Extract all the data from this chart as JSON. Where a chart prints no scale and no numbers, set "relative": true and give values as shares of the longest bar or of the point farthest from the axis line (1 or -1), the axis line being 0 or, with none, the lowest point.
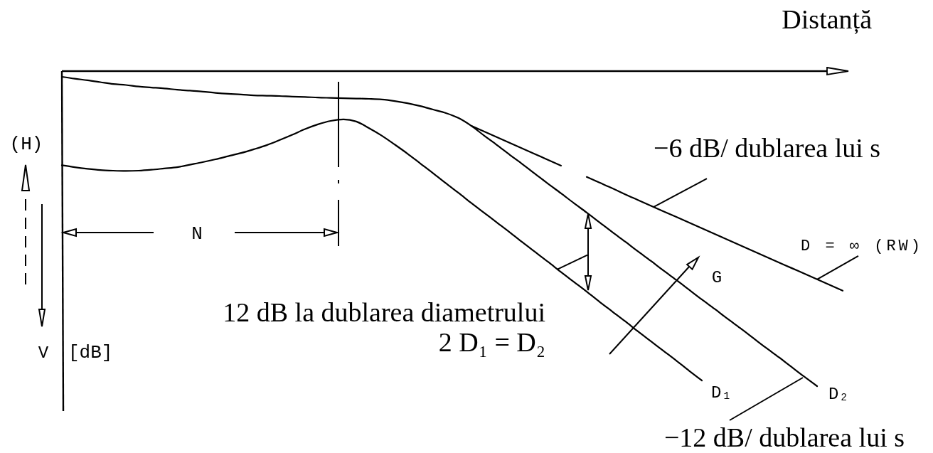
{
  "chart_data": {
    "type": "line",
    "xlabel": "Distanță",
    "relative": true,
    "line_style": "solid",
    "annotations": [
      "(H)",
      "V",
      "[dB]",
      "N",
      "12 dB la dublarea diametrului",
      "2 D₁ = D₂",
      "−6 dB/ dublarea lui s",
      "G",
      "−12 dB/ dublarea lui s"
    ],
    "categories": [
      null,
      null,
      null,
      null,
      null,
      null,
      null,
      null,
      null,
      null,
      null,
      null,
      null,
      null,
      null,
      null,
      null,
      null,
      null,
      null,
      null,
      null,
      null,
      null,
      null,
      null,
      null,
      null,
      null,
      null,
      null,
      null,
      null,
      null,
      null,
      null,
      null,
      null,
      null,
      null,
      null,
      null,
      null,
      null,
      null,
      null,
      null,
      null,
      null,
      null,
      null,
      null,
      null,
      null,
      null,
      null,
      null,
      null,
      null,
      null,
      null,
      null
    ],
    "series": [
      {
        "name": "D₁",
        "color": "#000000",
        "values": [
          -0.299,
          -0.305,
          -0.31,
          -0.314,
          -0.316,
          -0.317,
          -0.316,
          -0.313,
          -0.309,
          -0.305,
          -0.297,
          -0.289,
          -0.28,
          -0.27,
          -0.26,
          -0.248,
          -0.235,
          -0.219,
          -0.202,
          -0.184,
          -0.169,
          -0.158,
          -0.153,
          -0.16,
          -0.181,
          -0.205,
          -0.233,
          -0.262,
          -0.293,
          -0.324,
          -0.356,
          -0.387,
          -0.419,
          -0.45,
          -0.481,
          -0.512,
          -0.544,
          -0.575,
          -0.606,
          -0.638,
          -0.669,
          -0.7,
          -0.732,
          -0.763,
          -0.794,
          -0.826,
          -0.857,
          -0.888,
          -0.919,
          -0.951,
          -0.982,
          null,
          null,
          null,
          null,
          null,
          null,
          null,
          null,
          null,
          null,
          null
        ]
      },
      {
        "name": "D₂",
        "color": "#000000",
        "values": [
          -0.018,
          -0.024,
          -0.029,
          -0.035,
          -0.041,
          -0.044,
          -0.049,
          -0.052,
          -0.055,
          -0.059,
          -0.062,
          -0.065,
          -0.069,
          -0.072,
          -0.074,
          -0.077,
          -0.078,
          -0.079,
          -0.081,
          -0.082,
          -0.084,
          -0.085,
          -0.086,
          -0.087,
          -0.088,
          -0.09,
          -0.095,
          -0.102,
          -0.111,
          -0.122,
          -0.133,
          -0.149,
          -0.174,
          -0.205,
          -0.235,
          -0.266,
          -0.296,
          -0.327,
          -0.358,
          -0.388,
          -0.419,
          -0.449,
          -0.48,
          -0.511,
          -0.541,
          -0.572,
          -0.602,
          -0.633,
          -0.663,
          -0.694,
          -0.725,
          -0.755,
          -0.786,
          -0.816,
          -0.847,
          -0.878,
          -0.908,
          -0.939,
          -0.97,
          -1,
          null,
          null
        ]
      },
      {
        "name": "D = ∞ (RW)",
        "color": "#000000",
        "values": [
          null,
          null,
          null,
          null,
          null,
          null,
          null,
          null,
          null,
          null,
          null,
          null,
          null,
          null,
          null,
          null,
          null,
          null,
          null,
          null,
          null,
          null,
          null,
          null,
          null,
          null,
          null,
          null,
          null,
          null,
          null,
          null,
          -0.174,
          -0.192,
          -0.21,
          -0.228,
          -0.246,
          -0.264,
          -0.282,
          -0.3,
          null,
          -0.336,
          -0.354,
          -0.372,
          -0.391,
          -0.409,
          -0.427,
          -0.445,
          -0.463,
          -0.481,
          -0.499,
          -0.517,
          -0.535,
          -0.553,
          -0.571,
          -0.589,
          -0.607,
          -0.625,
          -0.643,
          -0.661,
          -0.679,
          -0.697
        ]
      }
    ]
  }
}
